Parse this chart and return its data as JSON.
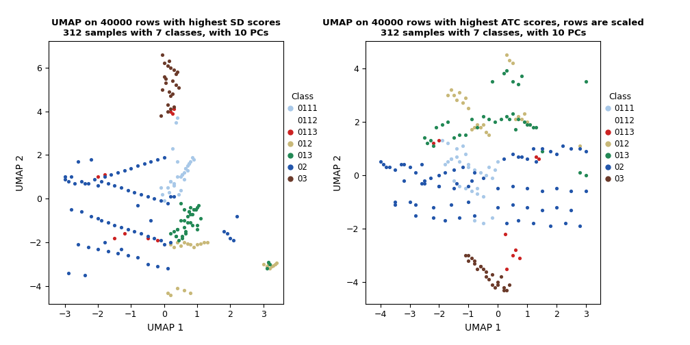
{
  "title1": "UMAP on 40000 rows with highest SD scores\n312 samples with 7 classes, with 10 PCs",
  "title2": "UMAP on 40000 rows with highest ATC scores, rows are scaled\n312 samples with 7 classes, with 10 PCs",
  "xlabel": "UMAP 1",
  "ylabel": "UMAP 2",
  "classes": [
    "0111",
    "0112",
    "0113",
    "012",
    "013",
    "02",
    "03"
  ],
  "colors": {
    "0111": "#A8C8E8",
    "0112": "#FFFFFF",
    "0113": "#CC2222",
    "012": "#C8B878",
    "013": "#228855",
    "02": "#2255AA",
    "03": "#6B3A2A"
  },
  "plot1": {
    "xlim": [
      -3.5,
      3.6
    ],
    "ylim": [
      -4.8,
      7.2
    ],
    "xticks": [
      -3,
      -2,
      -1,
      0,
      1,
      2,
      3
    ],
    "yticks": [
      -4,
      -2,
      0,
      2,
      4,
      6
    ],
    "data": {
      "0111": {
        "x": [
          -0.1,
          0.0,
          0.1,
          0.2,
          0.3,
          0.4,
          0.5,
          0.55,
          0.6,
          0.65,
          0.7,
          0.75,
          0.8,
          0.85,
          0.9,
          0.35,
          0.45,
          0.25,
          -0.05,
          0.15,
          0.4,
          0.6,
          0.3,
          0.5,
          0.7,
          0.2,
          0.55,
          0.65,
          0.75,
          0.4
        ],
        "y": [
          0.5,
          -0.1,
          0.5,
          0.8,
          0.7,
          3.7,
          1.0,
          1.1,
          1.2,
          1.4,
          1.5,
          1.6,
          1.7,
          1.9,
          1.8,
          3.5,
          0.2,
          2.3,
          0.2,
          0.3,
          1.0,
          0.9,
          0.6,
          0.4,
          1.3,
          0.8,
          1.1,
          1.4,
          1.6,
          1.7
        ]
      },
      "0112": {
        "x": [],
        "y": []
      },
      "0113": {
        "x": [
          -2.0,
          -1.8,
          -1.5,
          -0.5,
          0.2,
          0.25,
          0.3,
          -1.2,
          -0.2
        ],
        "y": [
          1.0,
          1.1,
          -1.8,
          -1.8,
          4.0,
          3.9,
          4.1,
          -1.6,
          -1.9
        ]
      },
      "012": {
        "x": [
          0.2,
          0.3,
          0.4,
          0.5,
          0.6,
          0.7,
          0.8,
          0.9,
          1.0,
          1.1,
          1.2,
          1.3,
          3.0,
          3.1,
          3.15,
          3.2,
          3.25,
          3.3,
          3.35,
          3.4,
          0.1,
          0.2,
          0.4,
          0.6,
          0.8
        ],
        "y": [
          -2.1,
          -2.2,
          -2.0,
          -2.15,
          -2.0,
          -2.05,
          -2.1,
          -2.2,
          -2.1,
          -2.05,
          -2.0,
          -2.0,
          -3.0,
          -3.1,
          -3.0,
          -3.2,
          -3.1,
          -3.05,
          -3.0,
          -2.95,
          -4.3,
          -4.4,
          -4.1,
          -4.2,
          -4.3
        ]
      },
      "013": {
        "x": [
          0.2,
          0.3,
          0.35,
          0.4,
          0.45,
          0.5,
          0.55,
          0.6,
          0.65,
          0.7,
          0.75,
          0.8,
          0.85,
          0.9,
          0.95,
          1.0,
          1.05,
          1.1,
          3.1,
          3.15,
          3.2,
          0.5,
          0.6,
          0.7,
          0.8,
          0.9,
          1.0,
          0.4,
          0.55,
          0.65,
          0.75,
          0.85,
          0.95,
          0.35,
          0.6,
          0.8,
          1.0
        ],
        "y": [
          -1.6,
          -1.5,
          -1.7,
          -1.4,
          -1.9,
          -0.2,
          -1.8,
          -1.3,
          -1.5,
          -0.8,
          -0.6,
          -0.4,
          -0.7,
          -0.5,
          -0.5,
          -1.2,
          -0.3,
          -0.9,
          -3.2,
          -2.9,
          -3.0,
          -1.0,
          -0.5,
          -1.1,
          -1.1,
          -0.5,
          -0.4,
          -1.4,
          -1.7,
          -1.6,
          -0.6,
          -1.2,
          -0.5,
          -1.7,
          -1.0,
          -0.7,
          -1.4
        ]
      },
      "02": {
        "x": [
          -3.0,
          -2.9,
          -2.8,
          -2.7,
          -2.6,
          -2.5,
          -2.4,
          -2.3,
          -2.2,
          -2.1,
          -2.0,
          -1.9,
          -1.8,
          -1.7,
          -1.6,
          -1.5,
          -1.4,
          -1.3,
          -1.2,
          -1.1,
          -1.0,
          -0.9,
          -0.8,
          -0.7,
          -0.6,
          -0.5,
          -0.4,
          -0.3,
          -0.2,
          -0.1,
          0.0,
          0.1,
          0.2,
          0.3,
          -2.8,
          -2.5,
          -2.2,
          -2.0,
          -1.9,
          -1.7,
          -1.5,
          -1.3,
          -1.1,
          -0.9,
          -0.7,
          -0.5,
          -0.3,
          -0.1,
          1.8,
          1.9,
          2.0,
          2.1,
          2.2,
          -2.6,
          -2.3,
          -2.0,
          -1.7,
          -1.4,
          -1.1,
          -0.8,
          -0.5,
          -0.2,
          0.1,
          -2.9,
          -2.4,
          -1.8,
          -1.3,
          -0.8,
          -0.4,
          0.0,
          0.2,
          -3.0
        ],
        "y": [
          0.9,
          0.8,
          1.0,
          0.7,
          1.7,
          0.8,
          0.7,
          0.7,
          1.8,
          0.9,
          0.6,
          0.8,
          1.0,
          0.7,
          1.1,
          0.6,
          1.2,
          0.5,
          1.3,
          0.4,
          1.4,
          0.3,
          1.5,
          0.2,
          1.6,
          0.1,
          1.7,
          0.0,
          1.8,
          -0.1,
          1.9,
          -0.2,
          0.1,
          0.1,
          -0.5,
          -0.6,
          -0.8,
          -0.9,
          -1.0,
          -1.1,
          -1.2,
          -1.3,
          -1.4,
          -1.5,
          -1.6,
          -1.7,
          -1.8,
          -1.9,
          -1.5,
          -1.6,
          -1.8,
          -1.9,
          -0.8,
          -2.1,
          -2.2,
          -2.3,
          -2.4,
          -2.5,
          -2.6,
          -2.7,
          -3.0,
          -3.1,
          -3.2,
          -3.4,
          -3.5,
          -2.0,
          -2.3,
          -0.3,
          -1.0,
          -2.1,
          -2.0,
          1.0
        ]
      },
      "03": {
        "x": [
          -0.05,
          0.0,
          0.05,
          0.1,
          0.15,
          0.2,
          0.25,
          0.3,
          0.35,
          0.4,
          0.45,
          -0.1,
          0.1,
          0.2,
          0.3,
          -0.05,
          0.05,
          0.15,
          0.25,
          0.35,
          0.0,
          0.1,
          0.2
        ],
        "y": [
          6.6,
          6.2,
          5.5,
          6.1,
          6.3,
          6.0,
          5.4,
          5.9,
          5.2,
          5.8,
          5.1,
          3.8,
          4.0,
          4.1,
          4.2,
          5.0,
          5.3,
          4.9,
          4.8,
          5.7,
          5.6,
          4.3,
          4.7
        ]
      }
    }
  },
  "plot2": {
    "xlim": [
      -4.5,
      3.5
    ],
    "ylim": [
      -4.8,
      5.0
    ],
    "xticks": [
      -4,
      -3,
      -2,
      -1,
      0,
      1,
      2,
      3
    ],
    "yticks": [
      -4,
      -2,
      0,
      2,
      4
    ],
    "data": {
      "0111": {
        "x": [
          -1.9,
          -1.8,
          -1.7,
          -1.6,
          -1.5,
          -1.4,
          -1.3,
          -1.2,
          -1.1,
          -1.0,
          -0.9,
          -0.8,
          -0.7,
          -0.6,
          -0.5,
          -0.4,
          -0.3,
          -0.2,
          -0.1,
          0.0,
          -1.7,
          -1.4,
          -1.1,
          -0.8,
          -0.5,
          -0.2,
          -1.6,
          -1.3,
          -1.0,
          -0.7
        ],
        "y": [
          1.3,
          0.4,
          0.5,
          0.6,
          -0.2,
          0.7,
          -0.4,
          1.1,
          -0.5,
          0.3,
          -0.6,
          0.2,
          -0.7,
          0.1,
          -0.8,
          0.0,
          0.3,
          -0.1,
          0.2,
          0.5,
          1.2,
          1.0,
          0.8,
          -1.7,
          -1.8,
          -1.6,
          0.6,
          0.5,
          0.4,
          -0.5
        ]
      },
      "0112": {
        "x": [],
        "y": []
      },
      "0113": {
        "x": [
          -2.2,
          -2.0,
          0.25,
          0.3,
          0.5,
          0.6,
          0.75,
          1.3,
          1.4
        ],
        "y": [
          1.2,
          1.3,
          -2.2,
          -3.5,
          -3.0,
          -2.8,
          -3.1,
          0.7,
          0.6
        ]
      },
      "012": {
        "x": [
          -1.5,
          -1.4,
          -1.3,
          -1.2,
          -1.1,
          -1.0,
          -0.9,
          -0.8,
          -0.7,
          -0.6,
          -0.5,
          -0.4,
          -0.3,
          0.3,
          0.4,
          0.5,
          0.6,
          0.7,
          0.8,
          0.9,
          1.0,
          1.1,
          2.8,
          -1.6,
          -1.7
        ],
        "y": [
          3.0,
          2.8,
          3.1,
          2.7,
          2.9,
          2.5,
          1.7,
          1.8,
          1.9,
          1.8,
          1.9,
          1.6,
          1.5,
          4.5,
          4.3,
          4.2,
          2.1,
          2.2,
          2.1,
          2.3,
          2.0,
          1.9,
          1.1,
          3.2,
          3.0
        ]
      },
      "013": {
        "x": [
          -2.5,
          -2.4,
          -2.3,
          -2.2,
          -2.1,
          -1.9,
          -1.7,
          -1.5,
          -1.3,
          -1.1,
          -0.9,
          -0.7,
          -0.5,
          -0.3,
          -0.1,
          0.1,
          0.3,
          0.5,
          0.6,
          0.7,
          0.8,
          0.9,
          1.0,
          1.1,
          1.2,
          1.3,
          1.5,
          2.8,
          3.0,
          0.4,
          0.3,
          0.2,
          -0.2,
          0.5,
          0.7,
          3.0
        ],
        "y": [
          1.4,
          1.2,
          1.3,
          1.1,
          1.8,
          1.9,
          2.0,
          1.4,
          1.5,
          1.5,
          2.1,
          1.8,
          2.2,
          2.1,
          2.0,
          2.1,
          2.2,
          2.3,
          1.7,
          2.1,
          3.7,
          2.0,
          1.9,
          1.9,
          1.8,
          1.8,
          0.9,
          0.1,
          0.0,
          2.1,
          3.9,
          3.8,
          3.5,
          3.5,
          3.4,
          3.5
        ]
      },
      "02": {
        "x": [
          -4.0,
          -3.9,
          -3.8,
          -3.7,
          -3.5,
          -3.3,
          -3.2,
          -3.0,
          -2.8,
          -2.6,
          -2.5,
          -2.3,
          -2.0,
          -1.8,
          -1.5,
          -1.2,
          -0.8,
          -0.5,
          0.0,
          0.2,
          0.5,
          0.7,
          0.8,
          1.0,
          1.2,
          1.5,
          1.8,
          2.0,
          2.2,
          2.5,
          2.8,
          3.0,
          -3.5,
          -3.0,
          -2.5,
          -2.0,
          -1.5,
          -1.0,
          0.5,
          1.0,
          1.5,
          2.0,
          2.5,
          3.0,
          -2.8,
          -2.2,
          -1.8,
          -1.3,
          -0.8,
          0.3,
          0.7,
          1.2,
          1.8,
          2.3,
          2.8,
          -3.5,
          -2.8,
          -2.2,
          -1.6,
          -1.0,
          0.0,
          0.5,
          1.0,
          1.5,
          2.0,
          2.5,
          -3.2,
          -2.6,
          -2.0,
          -1.4,
          -0.9,
          1.3
        ],
        "y": [
          0.5,
          0.4,
          0.3,
          0.3,
          0.2,
          0.4,
          0.4,
          0.3,
          0.1,
          0.4,
          -0.2,
          -0.1,
          0.0,
          0.1,
          0.2,
          0.3,
          0.1,
          -0.1,
          -0.5,
          0.6,
          0.8,
          0.7,
          0.7,
          0.6,
          1.0,
          1.0,
          0.9,
          0.8,
          1.1,
          1.0,
          1.0,
          0.9,
          -1.0,
          -1.0,
          -0.3,
          -0.4,
          -0.5,
          -0.4,
          -0.4,
          -0.5,
          -0.6,
          -0.5,
          -0.6,
          -0.6,
          -1.5,
          -1.6,
          -1.7,
          -1.6,
          -1.5,
          -1.8,
          -1.7,
          -1.8,
          -1.9,
          -1.8,
          -1.9,
          -1.1,
          -1.1,
          -1.2,
          -1.1,
          -1.0,
          -1.2,
          -1.1,
          -1.2,
          -1.3,
          -1.2,
          -1.3,
          -0.2,
          -0.3,
          -0.4,
          -0.3,
          -0.2,
          0.5
        ]
      },
      "03": {
        "x": [
          -1.0,
          -0.9,
          -0.8,
          -0.7,
          -0.6,
          -0.5,
          -0.4,
          -0.3,
          -0.2,
          -0.1,
          0.0,
          0.1,
          0.2,
          0.3,
          0.4,
          -1.1,
          -1.0,
          -0.8,
          -0.6,
          -0.4,
          -0.2,
          0.0,
          0.2
        ],
        "y": [
          -3.2,
          -3.1,
          -3.3,
          -3.5,
          -3.4,
          -3.5,
          -3.8,
          -3.9,
          -4.1,
          -4.2,
          -4.1,
          -3.8,
          -4.2,
          -4.3,
          -4.1,
          -3.0,
          -3.0,
          -3.2,
          -3.4,
          -3.6,
          -3.7,
          -4.0,
          -4.3
        ]
      }
    }
  }
}
